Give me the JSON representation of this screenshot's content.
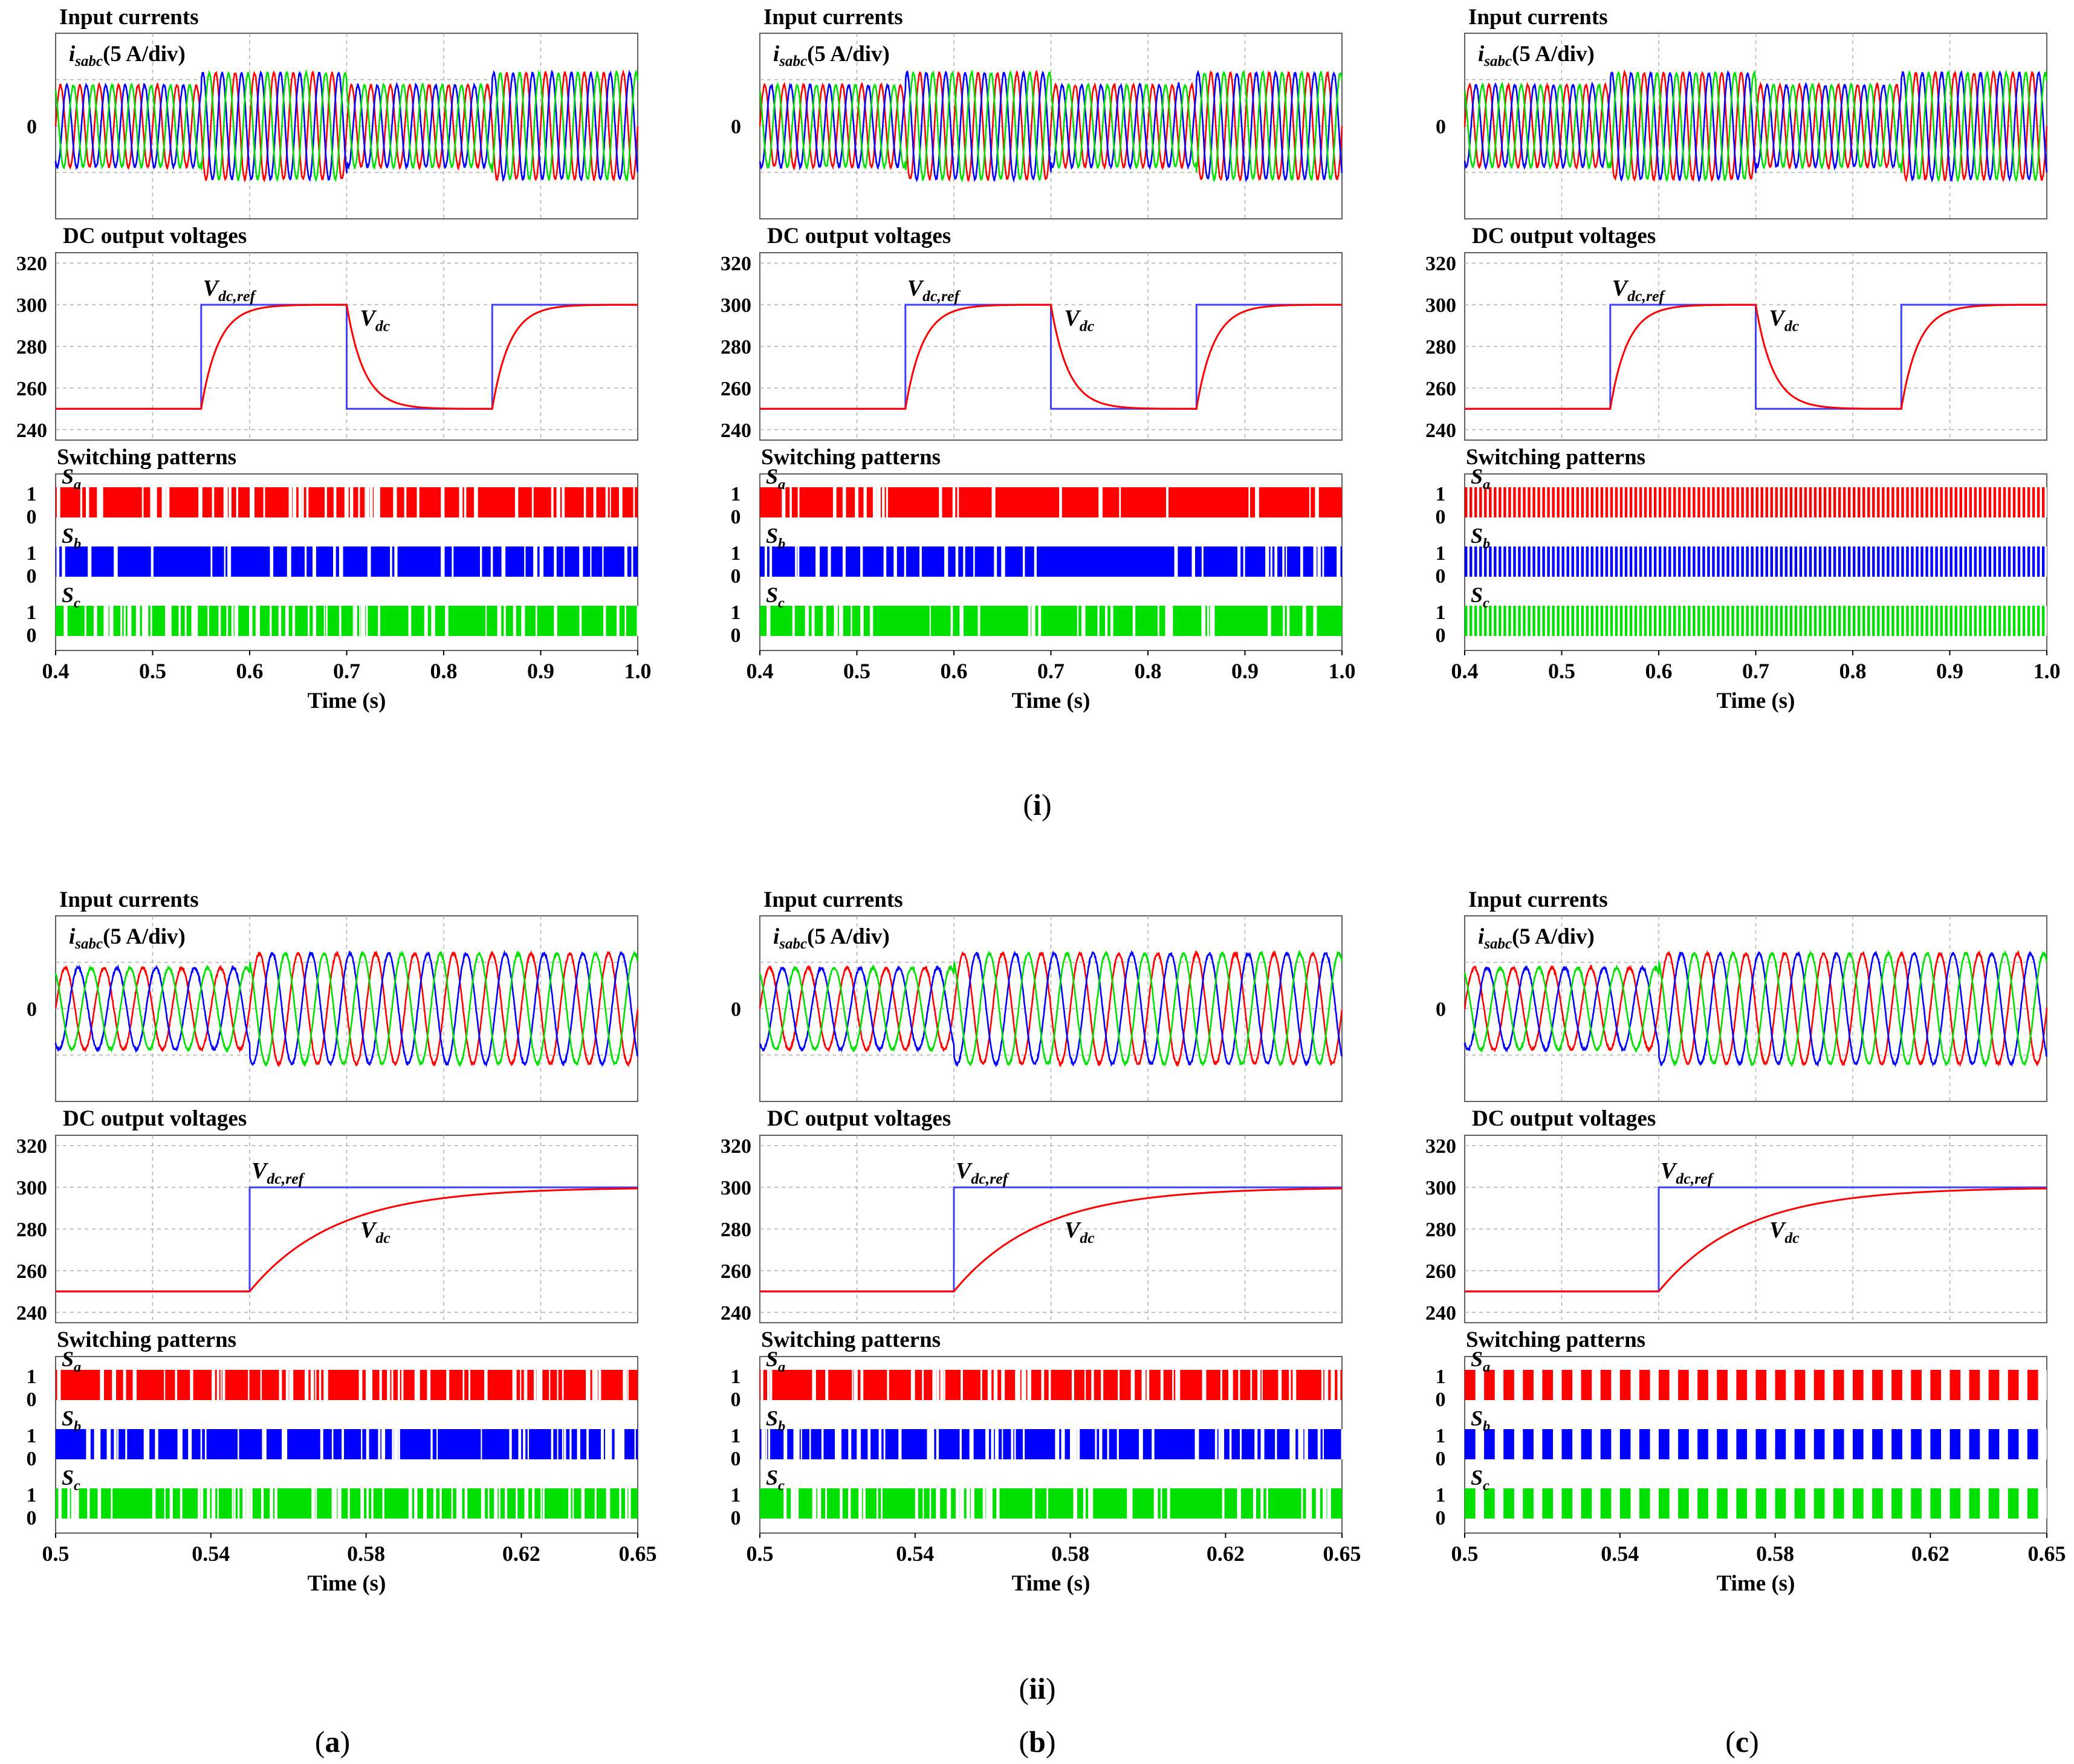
{
  "figure": {
    "row_labels": [
      {
        "open": "(",
        "text": "i",
        "close": ")"
      },
      {
        "open": "(",
        "text": "ii",
        "close": ")"
      }
    ],
    "column_labels": [
      {
        "open": "(",
        "text": "a",
        "close": ")"
      },
      {
        "open": "(",
        "text": "b",
        "close": ")"
      },
      {
        "open": "(",
        "text": "c",
        "close": ")"
      }
    ]
  },
  "colors": {
    "phase_a": "#ff0000",
    "phase_b": "#0000ff",
    "phase_c": "#00e000",
    "reference": "#4040ff",
    "measured": "#ff0000",
    "grid": "#b0b0b0",
    "frame": "#606060"
  },
  "chart_data": [
    {
      "type": "line",
      "row": "i",
      "column": "a",
      "x_range": [
        0.4,
        1.0
      ],
      "x_ticks": [
        "0.4",
        "0.5",
        "0.6",
        "0.7",
        "0.8",
        "0.9",
        "1.0"
      ],
      "xlabel": "Time (s)",
      "currents": {
        "title": "Input currents",
        "signal_main": "i",
        "signal_sub": "sabc",
        "signal_scale": "(5 A/div)",
        "zero_label": "0",
        "frequency_hz": 50,
        "amplitude_segments": [
          {
            "from": 0.4,
            "to": 0.55,
            "amp": 1.0
          },
          {
            "from": 0.55,
            "to": 0.7,
            "amp": 1.3
          },
          {
            "from": 0.7,
            "to": 0.85,
            "amp": 1.0
          },
          {
            "from": 0.85,
            "to": 1.0,
            "amp": 1.3
          }
        ]
      },
      "voltage": {
        "title": "DC output voltages",
        "y_range": [
          235,
          325
        ],
        "y_ticks": [
          "240",
          "260",
          "280",
          "300",
          "320"
        ],
        "ref_label_main": "V",
        "ref_label_sub": "dc,ref",
        "meas_label_main": "V",
        "meas_label_sub": "dc",
        "reference": [
          {
            "from": 0.4,
            "to": 0.55,
            "v": 250
          },
          {
            "from": 0.55,
            "to": 0.7,
            "v": 300
          },
          {
            "from": 0.7,
            "to": 0.85,
            "v": 250
          },
          {
            "from": 0.85,
            "to": 1.0,
            "v": 300
          }
        ],
        "time_constant_s": 0.018
      },
      "switching": {
        "title": "Switching patterns",
        "level_high": "1",
        "level_low": "0",
        "pattern": "variable",
        "gap_density": 0.25,
        "phases": [
          {
            "main": "S",
            "sub": "a"
          },
          {
            "main": "S",
            "sub": "b"
          },
          {
            "main": "S",
            "sub": "c"
          }
        ]
      }
    },
    {
      "type": "line",
      "row": "i",
      "column": "b",
      "x_range": [
        0.4,
        1.0
      ],
      "x_ticks": [
        "0.4",
        "0.5",
        "0.6",
        "0.7",
        "0.8",
        "0.9",
        "1.0"
      ],
      "xlabel": "Time (s)",
      "currents": {
        "title": "Input currents",
        "signal_main": "i",
        "signal_sub": "sabc",
        "signal_scale": "(5 A/div)",
        "zero_label": "0",
        "frequency_hz": 50,
        "amplitude_segments": [
          {
            "from": 0.4,
            "to": 0.55,
            "amp": 1.0
          },
          {
            "from": 0.55,
            "to": 0.7,
            "amp": 1.3
          },
          {
            "from": 0.7,
            "to": 0.85,
            "amp": 1.0
          },
          {
            "from": 0.85,
            "to": 1.0,
            "amp": 1.3
          }
        ]
      },
      "voltage": {
        "title": "DC output voltages",
        "y_range": [
          235,
          325
        ],
        "y_ticks": [
          "240",
          "260",
          "280",
          "300",
          "320"
        ],
        "ref_label_main": "V",
        "ref_label_sub": "dc,ref",
        "meas_label_main": "V",
        "meas_label_sub": "dc",
        "reference": [
          {
            "from": 0.4,
            "to": 0.55,
            "v": 250
          },
          {
            "from": 0.55,
            "to": 0.7,
            "v": 300
          },
          {
            "from": 0.7,
            "to": 0.85,
            "v": 250
          },
          {
            "from": 0.85,
            "to": 1.0,
            "v": 300
          }
        ],
        "time_constant_s": 0.018
      },
      "switching": {
        "title": "Switching patterns",
        "level_high": "1",
        "level_low": "0",
        "pattern": "variable",
        "gap_density": 0.18,
        "phases": [
          {
            "main": "S",
            "sub": "a"
          },
          {
            "main": "S",
            "sub": "b"
          },
          {
            "main": "S",
            "sub": "c"
          }
        ]
      }
    },
    {
      "type": "line",
      "row": "i",
      "column": "c",
      "x_range": [
        0.4,
        1.0
      ],
      "x_ticks": [
        "0.4",
        "0.5",
        "0.6",
        "0.7",
        "0.8",
        "0.9",
        "1.0"
      ],
      "xlabel": "Time (s)",
      "currents": {
        "title": "Input currents",
        "signal_main": "i",
        "signal_sub": "sabc",
        "signal_scale": "(5 A/div)",
        "zero_label": "0",
        "frequency_hz": 50,
        "amplitude_segments": [
          {
            "from": 0.4,
            "to": 0.55,
            "amp": 1.0
          },
          {
            "from": 0.55,
            "to": 0.7,
            "amp": 1.3
          },
          {
            "from": 0.7,
            "to": 0.85,
            "amp": 1.0
          },
          {
            "from": 0.85,
            "to": 1.0,
            "amp": 1.3
          }
        ]
      },
      "voltage": {
        "title": "DC output voltages",
        "y_range": [
          235,
          325
        ],
        "y_ticks": [
          "240",
          "260",
          "280",
          "300",
          "320"
        ],
        "ref_label_main": "V",
        "ref_label_sub": "dc,ref",
        "meas_label_main": "V",
        "meas_label_sub": "dc",
        "reference": [
          {
            "from": 0.4,
            "to": 0.55,
            "v": 250
          },
          {
            "from": 0.55,
            "to": 0.7,
            "v": 300
          },
          {
            "from": 0.7,
            "to": 0.85,
            "v": 250
          },
          {
            "from": 0.85,
            "to": 1.0,
            "v": 300
          }
        ],
        "time_constant_s": 0.018
      },
      "switching": {
        "title": "Switching patterns",
        "level_high": "1",
        "level_low": "0",
        "pattern": "fixed",
        "period_s": 0.005,
        "duty": 0.55,
        "phases": [
          {
            "main": "S",
            "sub": "a"
          },
          {
            "main": "S",
            "sub": "b"
          },
          {
            "main": "S",
            "sub": "c"
          }
        ]
      }
    },
    {
      "type": "line",
      "row": "ii",
      "column": "a",
      "x_range": [
        0.5,
        0.65
      ],
      "x_ticks": [
        "0.5",
        "0.54",
        "0.58",
        "0.62",
        "0.65"
      ],
      "x_tick_values": [
        0.5,
        0.54,
        0.58,
        0.62,
        0.65
      ],
      "xlabel": "Time (s)",
      "currents": {
        "title": "Input currents",
        "signal_main": "i",
        "signal_sub": "sabc",
        "signal_scale": "(5 A/div)",
        "zero_label": "0",
        "frequency_hz": 100,
        "amplitude_segments": [
          {
            "from": 0.5,
            "to": 0.55,
            "amp": 1.0
          },
          {
            "from": 0.55,
            "to": 0.65,
            "amp": 1.35
          }
        ]
      },
      "voltage": {
        "title": "DC output voltages",
        "y_range": [
          235,
          325
        ],
        "y_ticks": [
          "240",
          "260",
          "280",
          "300",
          "320"
        ],
        "ref_label_main": "V",
        "ref_label_sub": "dc,ref",
        "meas_label_main": "V",
        "meas_label_sub": "dc",
        "reference": [
          {
            "from": 0.5,
            "to": 0.55,
            "v": 250
          },
          {
            "from": 0.55,
            "to": 0.65,
            "v": 300
          }
        ],
        "time_constant_s": 0.022
      },
      "switching": {
        "title": "Switching patterns",
        "level_high": "1",
        "level_low": "0",
        "pattern": "variable",
        "gap_density": 0.35,
        "phases": [
          {
            "main": "S",
            "sub": "a"
          },
          {
            "main": "S",
            "sub": "b"
          },
          {
            "main": "S",
            "sub": "c"
          }
        ]
      }
    },
    {
      "type": "line",
      "row": "ii",
      "column": "b",
      "x_range": [
        0.5,
        0.65
      ],
      "x_ticks": [
        "0.5",
        "0.54",
        "0.58",
        "0.62",
        "0.65"
      ],
      "x_tick_values": [
        0.5,
        0.54,
        0.58,
        0.62,
        0.65
      ],
      "xlabel": "Time (s)",
      "currents": {
        "title": "Input currents",
        "signal_main": "i",
        "signal_sub": "sabc",
        "signal_scale": "(5 A/div)",
        "zero_label": "0",
        "frequency_hz": 100,
        "amplitude_segments": [
          {
            "from": 0.5,
            "to": 0.55,
            "amp": 1.0
          },
          {
            "from": 0.55,
            "to": 0.65,
            "amp": 1.35
          }
        ]
      },
      "voltage": {
        "title": "DC output voltages",
        "y_range": [
          235,
          325
        ],
        "y_ticks": [
          "240",
          "260",
          "280",
          "300",
          "320"
        ],
        "ref_label_main": "V",
        "ref_label_sub": "dc,ref",
        "meas_label_main": "V",
        "meas_label_sub": "dc",
        "reference": [
          {
            "from": 0.5,
            "to": 0.55,
            "v": 250
          },
          {
            "from": 0.55,
            "to": 0.65,
            "v": 300
          }
        ],
        "time_constant_s": 0.022
      },
      "switching": {
        "title": "Switching patterns",
        "level_high": "1",
        "level_low": "0",
        "pattern": "variable",
        "gap_density": 0.3,
        "phases": [
          {
            "main": "S",
            "sub": "a"
          },
          {
            "main": "S",
            "sub": "b"
          },
          {
            "main": "S",
            "sub": "c"
          }
        ]
      }
    },
    {
      "type": "line",
      "row": "ii",
      "column": "c",
      "x_range": [
        0.5,
        0.65
      ],
      "x_ticks": [
        "0.5",
        "0.54",
        "0.58",
        "0.62",
        "0.65"
      ],
      "x_tick_values": [
        0.5,
        0.54,
        0.58,
        0.62,
        0.65
      ],
      "xlabel": "Time (s)",
      "currents": {
        "title": "Input currents",
        "signal_main": "i",
        "signal_sub": "sabc",
        "signal_scale": "(5 A/div)",
        "zero_label": "0",
        "frequency_hz": 100,
        "amplitude_segments": [
          {
            "from": 0.5,
            "to": 0.55,
            "amp": 1.0
          },
          {
            "from": 0.55,
            "to": 0.65,
            "amp": 1.35
          }
        ]
      },
      "voltage": {
        "title": "DC output voltages",
        "y_range": [
          235,
          325
        ],
        "y_ticks": [
          "240",
          "260",
          "280",
          "300",
          "320"
        ],
        "ref_label_main": "V",
        "ref_label_sub": "dc,ref",
        "meas_label_main": "V",
        "meas_label_sub": "dc",
        "reference": [
          {
            "from": 0.5,
            "to": 0.55,
            "v": 250
          },
          {
            "from": 0.55,
            "to": 0.65,
            "v": 300
          }
        ],
        "time_constant_s": 0.022
      },
      "switching": {
        "title": "Switching patterns",
        "level_high": "1",
        "level_low": "0",
        "pattern": "fixed",
        "period_s": 0.005,
        "duty": 0.55,
        "phases": [
          {
            "main": "S",
            "sub": "a"
          },
          {
            "main": "S",
            "sub": "b"
          },
          {
            "main": "S",
            "sub": "c"
          }
        ]
      }
    }
  ]
}
